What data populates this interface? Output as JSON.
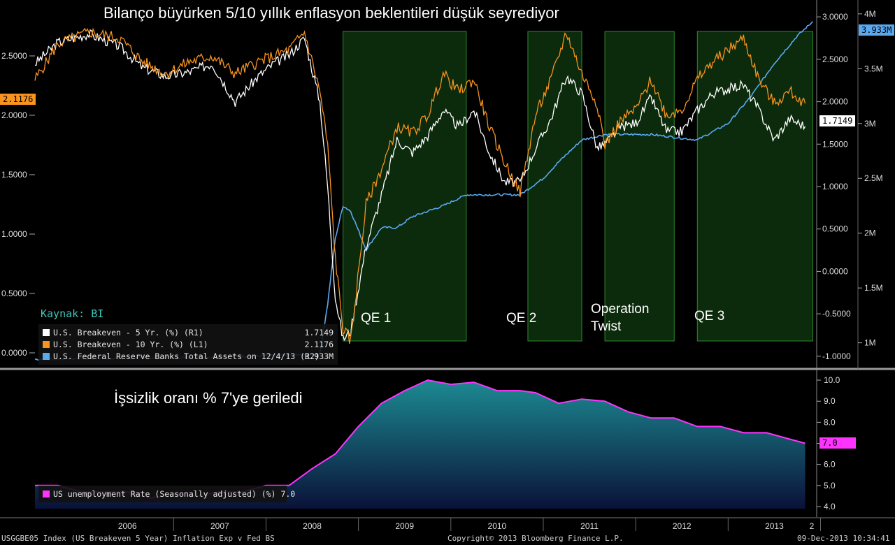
{
  "top_title": "Bilanço büyürken 5/10 yıllık enflasyon beklentileri düşük seyrediyor",
  "bottom_title": "İşsizlik oranı % 7'ye geriledi",
  "source_label": "Kaynak: BI",
  "footer": {
    "left": "USGGBE05 Index (US Breakeven 5 Year) Inflation Exp v Fed BS",
    "center": "Copyright© 2013 Bloomberg Finance L.P.",
    "right": "09-Dec-2013 10:34:41"
  },
  "legend": [
    {
      "label": "U.S. Breakeven - 5 Yr. (%) (R1)",
      "value": "1.7149",
      "color": "#ffffff"
    },
    {
      "label": "U.S. Breakeven - 10 Yr. (%) (L1)",
      "value": "2.1176",
      "color": "#f7931e"
    },
    {
      "label": "U.S. Federal Reserve Banks Total Assets on 12/4/13 (R2)",
      "value": "3.933M",
      "color": "#5aa9f0"
    }
  ],
  "legend_bottom": {
    "label": "US unemployment Rate (Seasonally adjusted) (%)",
    "value": "7.0",
    "color": "#ff33ff"
  },
  "badges": {
    "l1_last": "2.1176",
    "r1_last": "1.7149",
    "r2_last": "3.933M",
    "unemp_last": "7.0"
  },
  "chart_data": [
    {
      "type": "line",
      "x_axis": {
        "type": "date",
        "range": [
          "2005-07",
          "2013-12"
        ],
        "ticks": [
          "2006",
          "2007",
          "2008",
          "2009",
          "2010",
          "2011",
          "2012",
          "2013",
          "2"
        ]
      },
      "left_axis": {
        "range": [
          -0.1,
          2.9
        ],
        "ticks": [
          "0.0000",
          "0.5000",
          "1.0000",
          "1.5000",
          "2.0000",
          "2.5000"
        ]
      },
      "right1_axis": {
        "range": [
          -1.1,
          3.1
        ],
        "ticks": [
          "-1.0000",
          "-0.5000",
          "0.0000",
          "0.5000",
          "1.0000",
          "1.5000",
          "2.0000",
          "2.5000",
          "3.0000"
        ]
      },
      "right2_axis": {
        "ticks": [
          "1M",
          "1.5M",
          "2M",
          "2.5M",
          "3M",
          "3.5M",
          "4M"
        ],
        "range": [
          0.8,
          4.05
        ]
      },
      "shaded_periods": [
        {
          "label": "QE 1",
          "start": "2008-11",
          "end": "2010-03"
        },
        {
          "label": "QE 2",
          "start": "2010-11",
          "end": "2011-06"
        },
        {
          "label": "Operation Twist",
          "start": "2011-09",
          "end": "2012-06"
        },
        {
          "label": "QE 3",
          "start": "2012-09",
          "end": "2013-12"
        }
      ],
      "series": [
        {
          "name": "U.S. Breakeven - 10 Yr. (%) (L1)",
          "axis": "left",
          "color": "#f7931e",
          "x": [
            "2005-07",
            "2005-10",
            "2006-02",
            "2006-06",
            "2006-09",
            "2006-12",
            "2007-03",
            "2007-06",
            "2007-09",
            "2007-12",
            "2008-02",
            "2008-04",
            "2008-06",
            "2008-08",
            "2008-09",
            "2008-10",
            "2008-11",
            "2008-12",
            "2009-02",
            "2009-04",
            "2009-06",
            "2009-08",
            "2009-10",
            "2009-12",
            "2010-02",
            "2010-04",
            "2010-06",
            "2010-08",
            "2010-10",
            "2010-12",
            "2011-02",
            "2011-04",
            "2011-06",
            "2011-08",
            "2011-09",
            "2011-11",
            "2012-01",
            "2012-03",
            "2012-05",
            "2012-07",
            "2012-09",
            "2012-11",
            "2013-01",
            "2013-03",
            "2013-05",
            "2013-07",
            "2013-09",
            "2013-11"
          ],
          "y": [
            2.3,
            2.6,
            2.7,
            2.65,
            2.45,
            2.35,
            2.45,
            2.5,
            2.35,
            2.45,
            2.5,
            2.55,
            2.7,
            2.2,
            1.75,
            0.8,
            0.2,
            0.1,
            1.25,
            1.55,
            1.9,
            1.85,
            2.0,
            2.35,
            2.2,
            2.3,
            1.9,
            1.6,
            1.35,
            2.0,
            2.3,
            2.7,
            2.35,
            2.1,
            1.75,
            1.95,
            2.05,
            2.3,
            2.0,
            2.05,
            2.3,
            2.45,
            2.55,
            2.65,
            2.3,
            2.1,
            2.2,
            2.1
          ]
        },
        {
          "name": "U.S. Breakeven - 5 Yr. (%) (R1)",
          "axis": "right1",
          "color": "#ffffff",
          "x": [
            "2005-07",
            "2005-10",
            "2006-02",
            "2006-06",
            "2006-09",
            "2006-12",
            "2007-03",
            "2007-06",
            "2007-09",
            "2007-12",
            "2008-02",
            "2008-04",
            "2008-06",
            "2008-08",
            "2008-09",
            "2008-10",
            "2008-11",
            "2008-12",
            "2009-02",
            "2009-04",
            "2009-06",
            "2009-08",
            "2009-10",
            "2009-12",
            "2010-02",
            "2010-04",
            "2010-06",
            "2010-08",
            "2010-10",
            "2010-12",
            "2011-02",
            "2011-04",
            "2011-06",
            "2011-08",
            "2011-09",
            "2011-11",
            "2012-01",
            "2012-03",
            "2012-05",
            "2012-07",
            "2012-09",
            "2012-11",
            "2013-01",
            "2013-03",
            "2013-05",
            "2013-07",
            "2013-09",
            "2013-11"
          ],
          "y": [
            2.45,
            2.7,
            2.8,
            2.65,
            2.4,
            2.3,
            2.35,
            2.45,
            2.0,
            2.3,
            2.45,
            2.55,
            2.75,
            2.0,
            1.0,
            -0.3,
            -0.8,
            -0.7,
            0.3,
            0.9,
            1.55,
            1.4,
            1.6,
            1.9,
            1.7,
            1.9,
            1.4,
            1.05,
            1.05,
            1.45,
            1.8,
            2.3,
            2.1,
            1.45,
            1.5,
            1.7,
            1.75,
            2.05,
            1.65,
            1.65,
            1.9,
            2.1,
            2.15,
            2.2,
            1.9,
            1.55,
            1.8,
            1.71
          ]
        },
        {
          "name": "U.S. Federal Reserve Banks Total Assets on 12/4/13 (R2)",
          "axis": "right2",
          "color": "#5aa9f0",
          "x": [
            "2005-07",
            "2006-06",
            "2007-06",
            "2008-06",
            "2008-08",
            "2008-09",
            "2008-10",
            "2008-11",
            "2008-12",
            "2009-02",
            "2009-04",
            "2009-06",
            "2009-08",
            "2009-10",
            "2009-12",
            "2010-03",
            "2010-06",
            "2010-10",
            "2011-01",
            "2011-03",
            "2011-06",
            "2011-09",
            "2012-03",
            "2012-09",
            "2013-01",
            "2013-04",
            "2013-07",
            "2013-10",
            "2013-12"
          ],
          "y": [
            0.85,
            0.86,
            0.87,
            0.89,
            0.9,
            1.35,
            1.95,
            2.25,
            2.2,
            1.85,
            2.05,
            2.05,
            2.15,
            2.2,
            2.25,
            2.35,
            2.35,
            2.35,
            2.5,
            2.65,
            2.85,
            2.9,
            2.9,
            2.85,
            3.0,
            3.25,
            3.55,
            3.8,
            3.93
          ]
        }
      ]
    },
    {
      "type": "area",
      "x_axis": {
        "type": "date",
        "range": [
          "2005-07",
          "2013-12"
        ]
      },
      "right_axis": {
        "range": [
          3.9,
          10.3
        ],
        "ticks": [
          "4.0",
          "5.0",
          "6.0",
          "7.0",
          "8.0",
          "9.0",
          "10.0"
        ]
      },
      "series": [
        {
          "name": "US unemployment Rate (Seasonally adjusted) (%)",
          "color": "#ff33ff",
          "x": [
            "2005-07",
            "2005-10",
            "2006-01",
            "2006-04",
            "2006-07",
            "2006-10",
            "2007-01",
            "2007-04",
            "2007-07",
            "2007-10",
            "2008-01",
            "2008-04",
            "2008-07",
            "2008-10",
            "2009-01",
            "2009-04",
            "2009-07",
            "2009-10",
            "2010-01",
            "2010-04",
            "2010-07",
            "2010-10",
            "2010-12",
            "2011-03",
            "2011-06",
            "2011-09",
            "2011-12",
            "2012-03",
            "2012-06",
            "2012-09",
            "2012-12",
            "2013-03",
            "2013-06",
            "2013-09",
            "2013-11"
          ],
          "y": [
            5.0,
            5.0,
            4.7,
            4.7,
            4.7,
            4.4,
            4.6,
            4.5,
            4.7,
            4.7,
            5.0,
            5.0,
            5.8,
            6.5,
            7.8,
            8.9,
            9.5,
            10.0,
            9.8,
            9.9,
            9.5,
            9.5,
            9.4,
            8.9,
            9.1,
            9.0,
            8.5,
            8.2,
            8.2,
            7.8,
            7.8,
            7.5,
            7.5,
            7.2,
            7.0
          ]
        }
      ]
    }
  ]
}
